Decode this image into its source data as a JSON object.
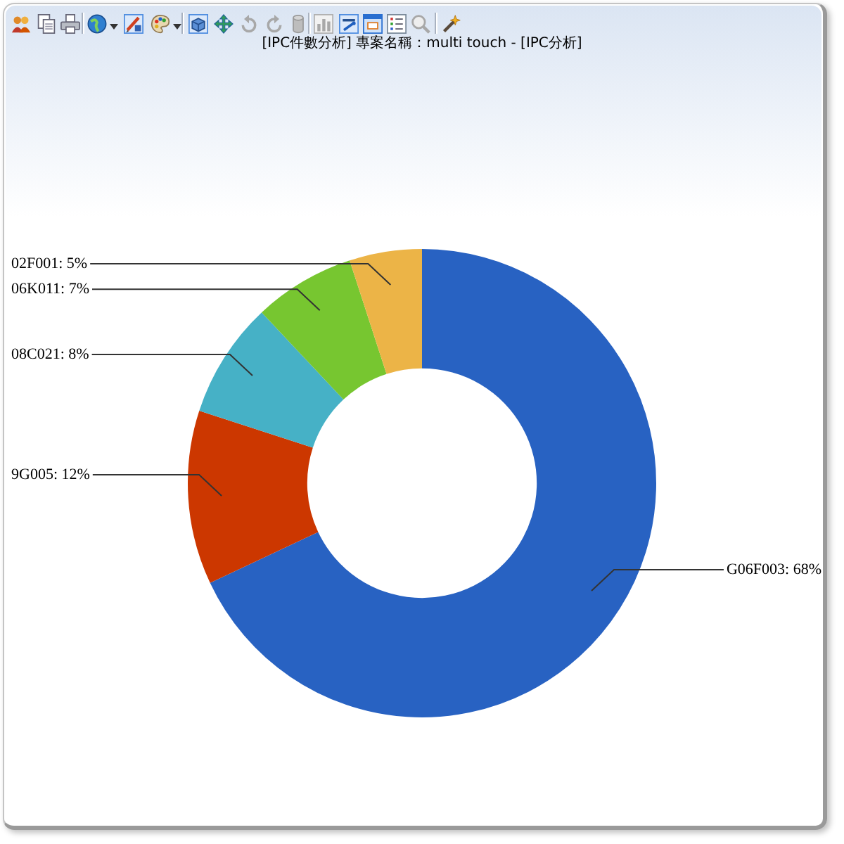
{
  "chart_data": {
    "type": "donut",
    "title": "[IPC件數分析] 專案名稱：multi touch - [IPC分析]",
    "categories": [
      "G06F003",
      "9G005",
      "08C021",
      "06K011",
      "02F001"
    ],
    "values": [
      68,
      12,
      8,
      7,
      5
    ],
    "value_labels": [
      "68%",
      "12%",
      "8%",
      "7%",
      "5%"
    ],
    "colors": [
      "#2862c2",
      "#cc3700",
      "#46b1c6",
      "#77c630",
      "#ecb447"
    ],
    "legend": false
  }
}
